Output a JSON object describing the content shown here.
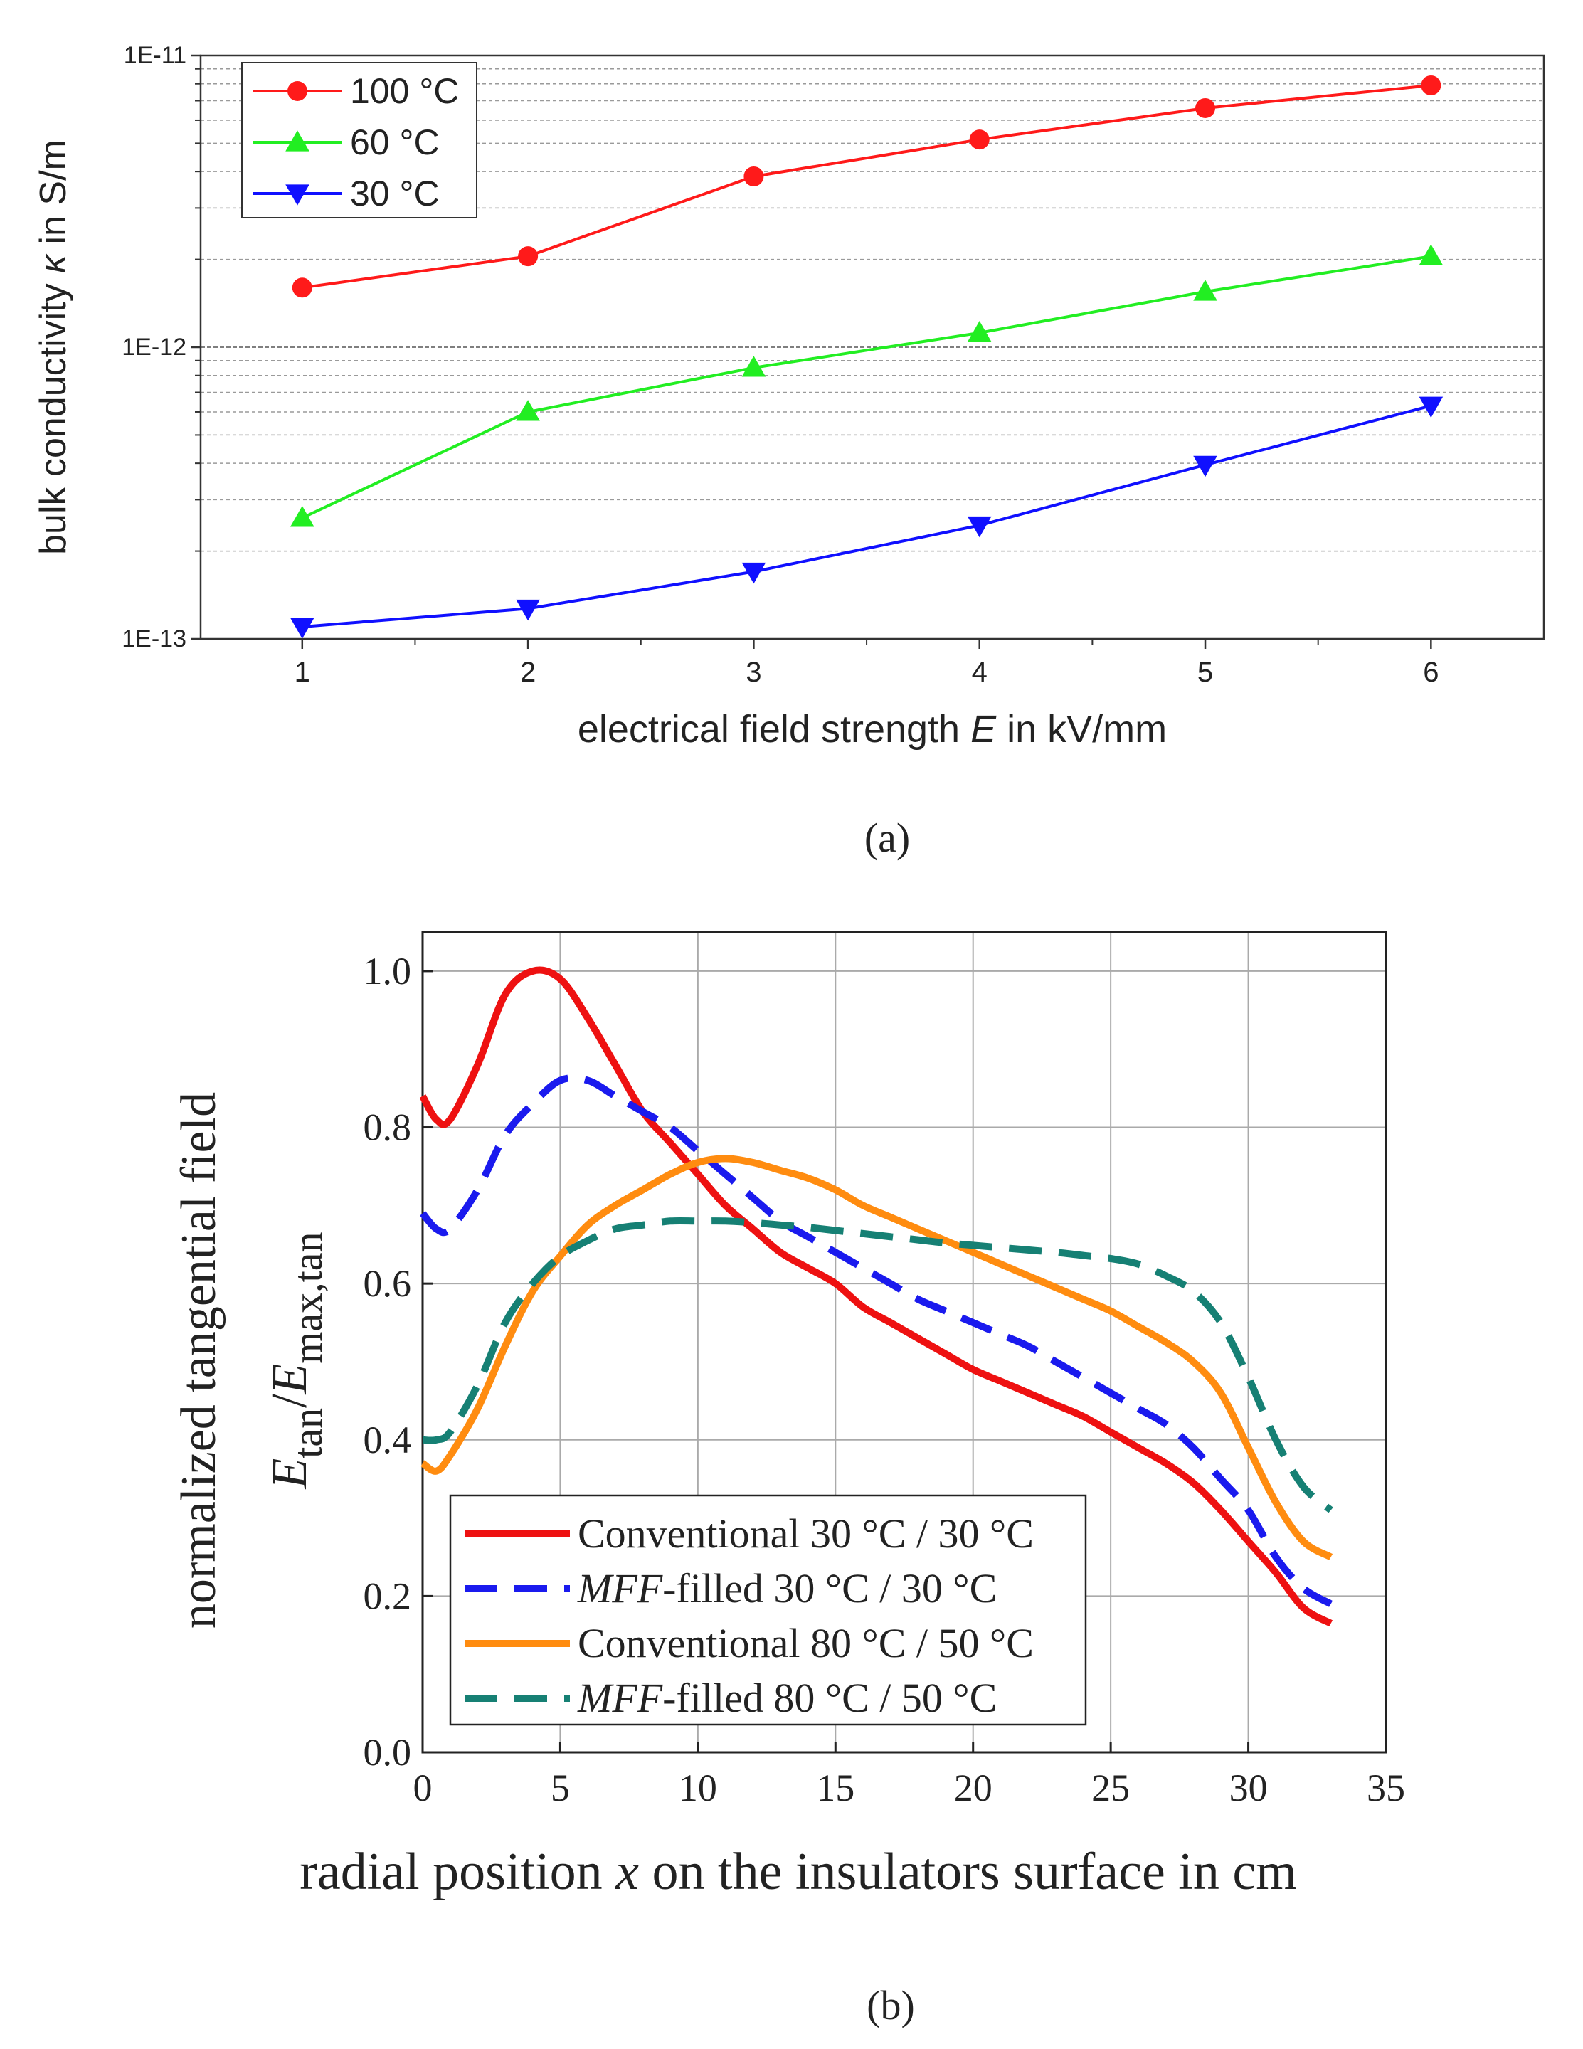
{
  "panel_labels": {
    "a": "(a)",
    "b": "(b)"
  },
  "chart_data": [
    {
      "type": "line",
      "panel": "(a)",
      "title": "",
      "xlabel": {
        "pre": "electrical field strength ",
        "var": "E",
        "post": " in kV/mm"
      },
      "ylabel": {
        "pre": "bulk conductivity ",
        "var": "κ",
        "post": " in S/m"
      },
      "y_scale": "log",
      "xlim": [
        0.55,
        6.5
      ],
      "ylim": [
        1e-13,
        1e-11
      ],
      "x_ticks": [
        1,
        2,
        3,
        4,
        5,
        6
      ],
      "x_tick_labels": [
        "1",
        "2",
        "3",
        "4",
        "5",
        "6"
      ],
      "y_ticks": [
        1e-13,
        1e-12,
        1e-11
      ],
      "y_tick_labels": [
        "1E-13",
        "1E-12",
        "1E-11"
      ],
      "grid": "dashed, major and minor decades",
      "legend_position": "top-left",
      "x": [
        1,
        2,
        3,
        4,
        5,
        6
      ],
      "series": [
        {
          "name": "100 °C",
          "color": "#ff1a1a",
          "marker": "circle",
          "values": [
            1.6e-12,
            2.05e-12,
            3.85e-12,
            5.15e-12,
            6.6e-12,
            7.9e-12
          ]
        },
        {
          "name": "60 °C",
          "color": "#22ee22",
          "marker": "triangle-up",
          "values": [
            2.6e-13,
            6e-13,
            8.5e-13,
            1.12e-12,
            1.55e-12,
            2.05e-12
          ]
        },
        {
          "name": "30 °C",
          "color": "#1010ff",
          "marker": "triangle-down",
          "values": [
            1.1e-13,
            1.27e-13,
            1.7e-13,
            2.45e-13,
            3.95e-13,
            6.3e-13
          ]
        }
      ]
    },
    {
      "type": "line",
      "panel": "(b)",
      "title": "",
      "xlabel": {
        "pre": "radial position ",
        "var": "x",
        "post": " on the insulators surface in cm"
      },
      "ylabel": {
        "line1": "normalized tangential field",
        "e1": "E",
        "sub1": "tan",
        "slash": "/",
        "e2": "E",
        "sub2": "max,tan"
      },
      "xlim": [
        0,
        35
      ],
      "ylim": [
        0,
        1.05
      ],
      "x_ticks": [
        0,
        5,
        10,
        15,
        20,
        25,
        30,
        35
      ],
      "x_tick_labels": [
        "0",
        "5",
        "10",
        "15",
        "20",
        "25",
        "30",
        "35"
      ],
      "y_ticks": [
        0,
        0.2,
        0.4,
        0.6,
        0.8,
        1.0
      ],
      "y_tick_labels": [
        "0.0",
        "0.2",
        "0.4",
        "0.6",
        "0.8",
        "1.0"
      ],
      "grid": true,
      "legend_position": "bottom-left",
      "x": [
        0,
        0.5,
        1,
        2,
        3,
        4,
        5,
        6,
        7,
        8,
        9,
        10,
        11,
        12,
        13,
        14,
        15,
        16,
        17,
        18,
        19,
        20,
        21,
        22,
        23,
        24,
        25,
        26,
        27,
        28,
        29,
        30,
        31,
        32,
        33
      ],
      "series": [
        {
          "name": "Conventional 30 °C / 30 °C",
          "name_italic": "",
          "name_rest": "Conventional 30 °C / 30 °C",
          "color": "#ee1111",
          "dash": "solid",
          "values": [
            0.84,
            0.81,
            0.81,
            0.88,
            0.97,
            1.0,
            0.99,
            0.94,
            0.88,
            0.82,
            0.78,
            0.74,
            0.7,
            0.67,
            0.64,
            0.62,
            0.6,
            0.57,
            0.55,
            0.53,
            0.51,
            0.49,
            0.475,
            0.46,
            0.445,
            0.43,
            0.41,
            0.39,
            0.37,
            0.345,
            0.31,
            0.27,
            0.23,
            0.185,
            0.165
          ]
        },
        {
          "name": "MFF-filled 30 °C / 30 °C",
          "name_italic": "MFF",
          "name_rest": "-filled 30 °C / 30 °C",
          "color": "#1a1aee",
          "dash": "dashed",
          "values": [
            0.69,
            0.67,
            0.67,
            0.72,
            0.79,
            0.83,
            0.86,
            0.86,
            0.84,
            0.82,
            0.8,
            0.77,
            0.74,
            0.71,
            0.68,
            0.66,
            0.64,
            0.62,
            0.6,
            0.58,
            0.565,
            0.55,
            0.535,
            0.52,
            0.5,
            0.48,
            0.46,
            0.44,
            0.42,
            0.39,
            0.35,
            0.31,
            0.25,
            0.21,
            0.19
          ]
        },
        {
          "name": "Conventional 80 °C / 50 °C",
          "name_italic": "",
          "name_rest": "Conventional 80 °C / 50 °C",
          "color": "#ff8c10",
          "dash": "solid",
          "values": [
            0.37,
            0.36,
            0.38,
            0.44,
            0.52,
            0.59,
            0.635,
            0.675,
            0.7,
            0.72,
            0.74,
            0.755,
            0.76,
            0.755,
            0.745,
            0.735,
            0.72,
            0.7,
            0.685,
            0.67,
            0.655,
            0.64,
            0.625,
            0.61,
            0.595,
            0.58,
            0.565,
            0.545,
            0.525,
            0.5,
            0.46,
            0.39,
            0.32,
            0.27,
            0.25
          ]
        },
        {
          "name": "MFF-filled 80 °C / 50 °C",
          "name_italic": "MFF",
          "name_rest": "-filled 80 °C / 50 °C",
          "color": "#168074",
          "dash": "dashed",
          "values": [
            0.4,
            0.4,
            0.41,
            0.47,
            0.55,
            0.6,
            0.635,
            0.655,
            0.67,
            0.675,
            0.68,
            0.68,
            0.68,
            0.678,
            0.675,
            0.672,
            0.668,
            0.664,
            0.66,
            0.656,
            0.652,
            0.649,
            0.646,
            0.643,
            0.64,
            0.636,
            0.632,
            0.625,
            0.61,
            0.59,
            0.55,
            0.48,
            0.4,
            0.34,
            0.31
          ]
        }
      ]
    }
  ]
}
